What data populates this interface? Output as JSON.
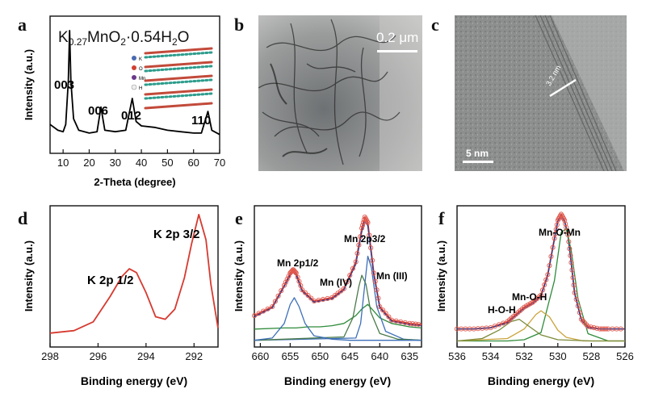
{
  "panel_letters": {
    "a": "a",
    "b": "b",
    "c": "c",
    "d": "d",
    "e": "e",
    "f": "f"
  },
  "panel_a": {
    "formula_parts": [
      "K",
      "0.27",
      "MnO",
      "2",
      "·0.54H",
      "2",
      "O"
    ],
    "peak_labels": [
      "003",
      "006",
      "012",
      "110"
    ],
    "legend": [
      "K",
      "O",
      "Mn",
      "H"
    ]
  },
  "tem_b": {
    "scale_label": "0.2 μm"
  },
  "tem_c": {
    "scale_label": "5 nm",
    "spacing_label": "3.2 nm"
  },
  "chart_data": [
    {
      "type": "line",
      "panel": "a",
      "xlabel": "2-Theta (degree)",
      "ylabel": "Intensity (a.u.)",
      "xlim": [
        5,
        70
      ],
      "xticks": [
        10,
        20,
        30,
        40,
        50,
        60,
        70
      ],
      "series": [
        {
          "color": "#000000",
          "x": [
            5,
            8,
            10,
            11,
            12,
            12.5,
            13,
            14,
            16,
            20,
            23,
            24.5,
            26,
            30,
            34,
            36.5,
            38,
            40,
            45,
            50,
            55,
            60,
            63,
            65.5,
            67,
            70
          ],
          "y": [
            2,
            1.6,
            1.5,
            2,
            5,
            8.5,
            5,
            2.4,
            1.6,
            1.4,
            1.5,
            3.2,
            1.6,
            1.5,
            1.6,
            3.8,
            2.2,
            1.9,
            1.8,
            1.6,
            1.5,
            1.4,
            1.4,
            2.9,
            1.6,
            1.3
          ]
        }
      ]
    },
    {
      "type": "line",
      "panel": "d",
      "xlabel": "Binding energy (eV)",
      "ylabel": "Intensity (a.u.)",
      "xlim": [
        298,
        291
      ],
      "xticks": [
        298,
        296,
        294,
        292
      ],
      "annotations": [
        "K 2p 1/2",
        "K 2p 3/2"
      ],
      "series": [
        {
          "color": "#d63a30",
          "x": [
            298,
            297,
            296.2,
            295.5,
            295,
            294.7,
            294.4,
            294,
            293.6,
            293.2,
            292.8,
            292.4,
            292.1,
            291.8,
            291.5,
            291.3,
            291
          ],
          "y": [
            1.1,
            1.3,
            2.0,
            4.0,
            5.6,
            6.2,
            5.9,
            4.3,
            2.4,
            2.2,
            3.0,
            5.5,
            8.2,
            10.5,
            8.5,
            5.0,
            1.5
          ]
        }
      ]
    },
    {
      "type": "line",
      "panel": "e",
      "xlabel": "Binding energy (eV)",
      "ylabel": "Intensity (a.u.)",
      "xlim": [
        661,
        633
      ],
      "xticks": [
        660,
        655,
        650,
        645,
        640,
        635
      ],
      "annotations": [
        "Mn 2p1/2",
        "Mn (IV)",
        "Mn 2p3/2",
        "Mn (III)"
      ],
      "series": [
        {
          "color": "#d63a30",
          "x": [
            661,
            658,
            656,
            655,
            654.5,
            654,
            653,
            651,
            648,
            646,
            644,
            643,
            642.5,
            642,
            641,
            640,
            638,
            635,
            633
          ],
          "y": [
            2.2,
            3.0,
            4.9,
            6.0,
            6.3,
            6.0,
            4.5,
            3.5,
            3.8,
            4.6,
            7.0,
            10.0,
            11.0,
            10.5,
            6.0,
            3.0,
            1.8,
            1.5,
            1.4
          ]
        },
        {
          "color": "#2b3a8f",
          "x": [
            661,
            658,
            656,
            655,
            654.5,
            654,
            653,
            651,
            648,
            646,
            644,
            643,
            642.5,
            642,
            641,
            640,
            638,
            635,
            633
          ],
          "y": [
            2.1,
            2.9,
            4.8,
            5.8,
            6.1,
            5.8,
            4.4,
            3.4,
            3.7,
            4.5,
            6.8,
            9.7,
            10.7,
            10.2,
            5.8,
            2.9,
            1.7,
            1.4,
            1.3
          ]
        },
        {
          "color": "#2e8b3a",
          "x": [
            661,
            656,
            654,
            652,
            650,
            648,
            646,
            644,
            643,
            642,
            641,
            640,
            638,
            635,
            633
          ],
          "y": [
            1.0,
            1.1,
            1.1,
            1.2,
            1.2,
            1.3,
            1.5,
            2.2,
            2.8,
            3.2,
            2.6,
            2.0,
            1.5,
            1.2,
            1.1
          ]
        },
        {
          "color": "#3d6fb8",
          "x": [
            661,
            644,
            643.2,
            642.5,
            642,
            641.4,
            640.5,
            639,
            636,
            633
          ],
          "y": [
            0,
            0.2,
            1.5,
            5.0,
            7.5,
            6.5,
            3.0,
            0.8,
            0.1,
            0
          ]
        },
        {
          "color": "#4a7a4a",
          "x": [
            661,
            646,
            644.5,
            643.5,
            643,
            642.3,
            641.5,
            640,
            637,
            633
          ],
          "y": [
            0,
            0.3,
            2.0,
            4.8,
            5.8,
            5.0,
            2.5,
            0.6,
            0.1,
            0
          ]
        },
        {
          "color": "#3d6fb8",
          "x": [
            661,
            658,
            656,
            655,
            654.3,
            653.5,
            652.5,
            651,
            648,
            645,
            633
          ],
          "y": [
            0,
            0.2,
            1.5,
            3.2,
            3.8,
            3.0,
            1.5,
            0.4,
            0.1,
            0,
            0
          ]
        }
      ]
    },
    {
      "type": "line",
      "panel": "f",
      "xlabel": "Binding energy (eV)",
      "ylabel": "Intensity (a.u.)",
      "xlim": [
        536,
        526
      ],
      "xticks": [
        536,
        534,
        532,
        530,
        528,
        526
      ],
      "annotations": [
        "Mn-O-Mn",
        "Mn-O-H",
        "H-O-H"
      ],
      "series": [
        {
          "color": "#d63a30",
          "x": [
            536,
            535,
            534,
            533,
            532.5,
            532,
            531.5,
            531,
            530.6,
            530.2,
            530,
            529.8,
            529.6,
            529.4,
            529.2,
            529,
            528.6,
            528.2,
            527.5,
            527,
            526
          ],
          "y": [
            1.0,
            1.0,
            1.1,
            1.6,
            2.2,
            2.8,
            3.2,
            3.8,
            5.5,
            8.5,
            10.0,
            10.5,
            10.0,
            8.8,
            6.5,
            4.0,
            1.8,
            1.2,
            1.0,
            1.0,
            1.0
          ]
        },
        {
          "color": "#2b3a8f",
          "x": [
            536,
            535,
            534,
            533,
            532.5,
            532,
            531.5,
            531,
            530.6,
            530.2,
            530,
            529.8,
            529.6,
            529.4,
            529.2,
            529,
            528.6,
            528.2,
            527.5,
            527,
            526
          ],
          "y": [
            1.0,
            1.0,
            1.1,
            1.5,
            2.1,
            2.7,
            3.1,
            3.7,
            5.4,
            8.4,
            9.9,
            10.4,
            9.9,
            8.7,
            6.4,
            3.9,
            1.7,
            1.1,
            1.0,
            1.0,
            1.0
          ]
        },
        {
          "color": "#2e8b3a",
          "x": [
            536,
            533,
            532,
            531,
            530.2,
            529.8,
            529.5,
            529.2,
            528.8,
            528.2,
            527,
            526
          ],
          "y": [
            0,
            0,
            0.1,
            0.7,
            5.0,
            9.0,
            9.3,
            7.5,
            3.5,
            0.6,
            0,
            0
          ]
        },
        {
          "color": "#c9a43a",
          "x": [
            536,
            533,
            532,
            531.3,
            531,
            530.5,
            530,
            529.5,
            528.5,
            526
          ],
          "y": [
            0,
            0.2,
            1.0,
            2.2,
            2.5,
            2.0,
            0.9,
            0.3,
            0,
            0
          ]
        },
        {
          "color": "#7a8a3a",
          "x": [
            536,
            534.5,
            533.5,
            532.8,
            532.3,
            531.8,
            531,
            530,
            528,
            526
          ],
          "y": [
            0,
            0.2,
            0.9,
            1.6,
            1.8,
            1.3,
            0.5,
            0.1,
            0,
            0
          ]
        }
      ]
    }
  ]
}
